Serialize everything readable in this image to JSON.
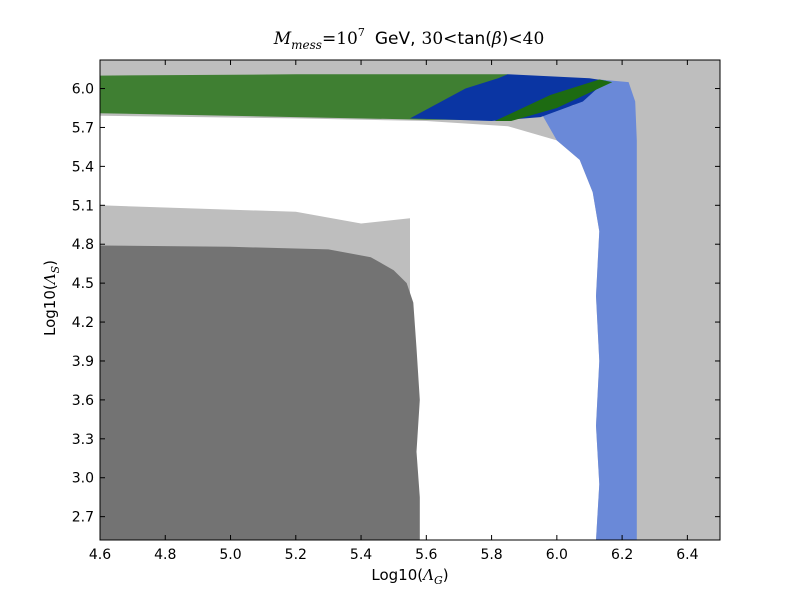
{
  "chart_data": {
    "type": "area",
    "title": {
      "m_sym": "M",
      "m_sub": "mess",
      "eq": "=",
      "ten": "10",
      "exp": "7",
      "gev": "GeV,",
      "lo": "30",
      "lt1": "<",
      "tanb": "tan(",
      "beta": "β",
      "close": ")",
      "lt2": "<",
      "hi": "40"
    },
    "xlabel": {
      "prefix": "Log10(",
      "sym": "Λ",
      "sub": "G",
      "suffix": ")"
    },
    "ylabel": {
      "prefix": "Log10(",
      "sym": "Λ",
      "sub": "S",
      "suffix": ")"
    },
    "xlim": [
      4.6,
      6.5
    ],
    "ylim": [
      2.52,
      6.22
    ],
    "xticks": [
      "4.6",
      "4.8",
      "5.0",
      "5.2",
      "5.4",
      "5.6",
      "5.8",
      "6.0",
      "6.2",
      "6.4"
    ],
    "yticks": [
      "2.7",
      "3.0",
      "3.3",
      "3.6",
      "3.9",
      "4.2",
      "4.5",
      "4.8",
      "5.1",
      "5.4",
      "5.7",
      "6.0"
    ],
    "grid": false,
    "legend": "none",
    "colors": {
      "light_gray": "#bebebe",
      "dark_gray": "#737373",
      "green": "#3f7f32",
      "dark_blue": "#0a35a3",
      "light_blue": "#6a89d8",
      "dark_green": "#1d6b12",
      "white": "#ffffff"
    },
    "regions": [
      {
        "name": "excluded-region-light-gray",
        "color": "light_gray",
        "points": [
          [
            4.6,
            2.52
          ],
          [
            6.5,
            2.52
          ],
          [
            6.5,
            6.22
          ],
          [
            4.6,
            6.22
          ]
        ]
      },
      {
        "name": "allowed-region-white",
        "color": "white",
        "points": [
          [
            4.6,
            2.52
          ],
          [
            6.12,
            2.52
          ],
          [
            6.13,
            2.95
          ],
          [
            6.12,
            3.4
          ],
          [
            6.13,
            3.9
          ],
          [
            6.12,
            4.4
          ],
          [
            6.13,
            4.9
          ],
          [
            6.11,
            5.2
          ],
          [
            6.07,
            5.45
          ],
          [
            6.0,
            5.6
          ],
          [
            5.85,
            5.71
          ],
          [
            5.6,
            5.75
          ],
          [
            5.2,
            5.77
          ],
          [
            4.6,
            5.79
          ]
        ]
      },
      {
        "name": "light-gray-band-lower-left",
        "color": "light_gray",
        "points": [
          [
            4.6,
            4.78
          ],
          [
            5.2,
            4.74
          ],
          [
            5.4,
            4.68
          ],
          [
            5.5,
            4.55
          ],
          [
            5.55,
            4.4
          ],
          [
            5.55,
            5.0
          ],
          [
            5.4,
            4.96
          ],
          [
            5.2,
            5.05
          ],
          [
            4.6,
            5.1
          ]
        ]
      },
      {
        "name": "dark-gray-region-lower-left",
        "color": "dark_gray",
        "points": [
          [
            4.6,
            2.52
          ],
          [
            5.58,
            2.52
          ],
          [
            5.58,
            2.85
          ],
          [
            5.57,
            3.2
          ],
          [
            5.58,
            3.6
          ],
          [
            5.57,
            4.0
          ],
          [
            5.56,
            4.35
          ],
          [
            5.54,
            4.5
          ],
          [
            5.5,
            4.6
          ],
          [
            5.43,
            4.7
          ],
          [
            5.3,
            4.76
          ],
          [
            5.0,
            4.78
          ],
          [
            4.6,
            4.79
          ]
        ]
      },
      {
        "name": "light-blue-band",
        "color": "light_blue",
        "points": [
          [
            6.12,
            2.52
          ],
          [
            6.245,
            2.52
          ],
          [
            6.245,
            5.6
          ],
          [
            6.24,
            5.9
          ],
          [
            6.22,
            6.05
          ],
          [
            6.13,
            6.07
          ],
          [
            6.1,
            5.95
          ],
          [
            6.05,
            5.87
          ],
          [
            5.95,
            5.82
          ],
          [
            6.0,
            5.6
          ],
          [
            6.07,
            5.45
          ],
          [
            6.11,
            5.2
          ],
          [
            6.13,
            4.9
          ],
          [
            6.12,
            4.4
          ],
          [
            6.13,
            3.9
          ],
          [
            6.12,
            3.4
          ],
          [
            6.13,
            2.95
          ]
        ]
      },
      {
        "name": "green-band-upper",
        "color": "green",
        "points": [
          [
            4.6,
            5.81
          ],
          [
            5.2,
            5.78
          ],
          [
            5.6,
            5.76
          ],
          [
            5.8,
            5.76
          ],
          [
            5.85,
            5.95
          ],
          [
            5.85,
            6.11
          ],
          [
            5.2,
            6.11
          ],
          [
            4.6,
            6.1
          ]
        ]
      },
      {
        "name": "dark-blue-band",
        "color": "dark_blue",
        "points": [
          [
            5.55,
            5.77
          ],
          [
            5.8,
            5.75
          ],
          [
            5.95,
            5.78
          ],
          [
            6.08,
            5.9
          ],
          [
            6.15,
            6.06
          ],
          [
            6.1,
            6.08
          ],
          [
            5.85,
            6.11
          ],
          [
            5.82,
            6.08
          ],
          [
            5.72,
            6.0
          ]
        ]
      },
      {
        "name": "dark-green-strip",
        "color": "dark_green",
        "points": [
          [
            5.81,
            5.75
          ],
          [
            5.86,
            5.75
          ],
          [
            6.0,
            5.85
          ],
          [
            6.17,
            6.05
          ],
          [
            6.13,
            6.07
          ],
          [
            5.98,
            5.95
          ]
        ]
      }
    ]
  }
}
